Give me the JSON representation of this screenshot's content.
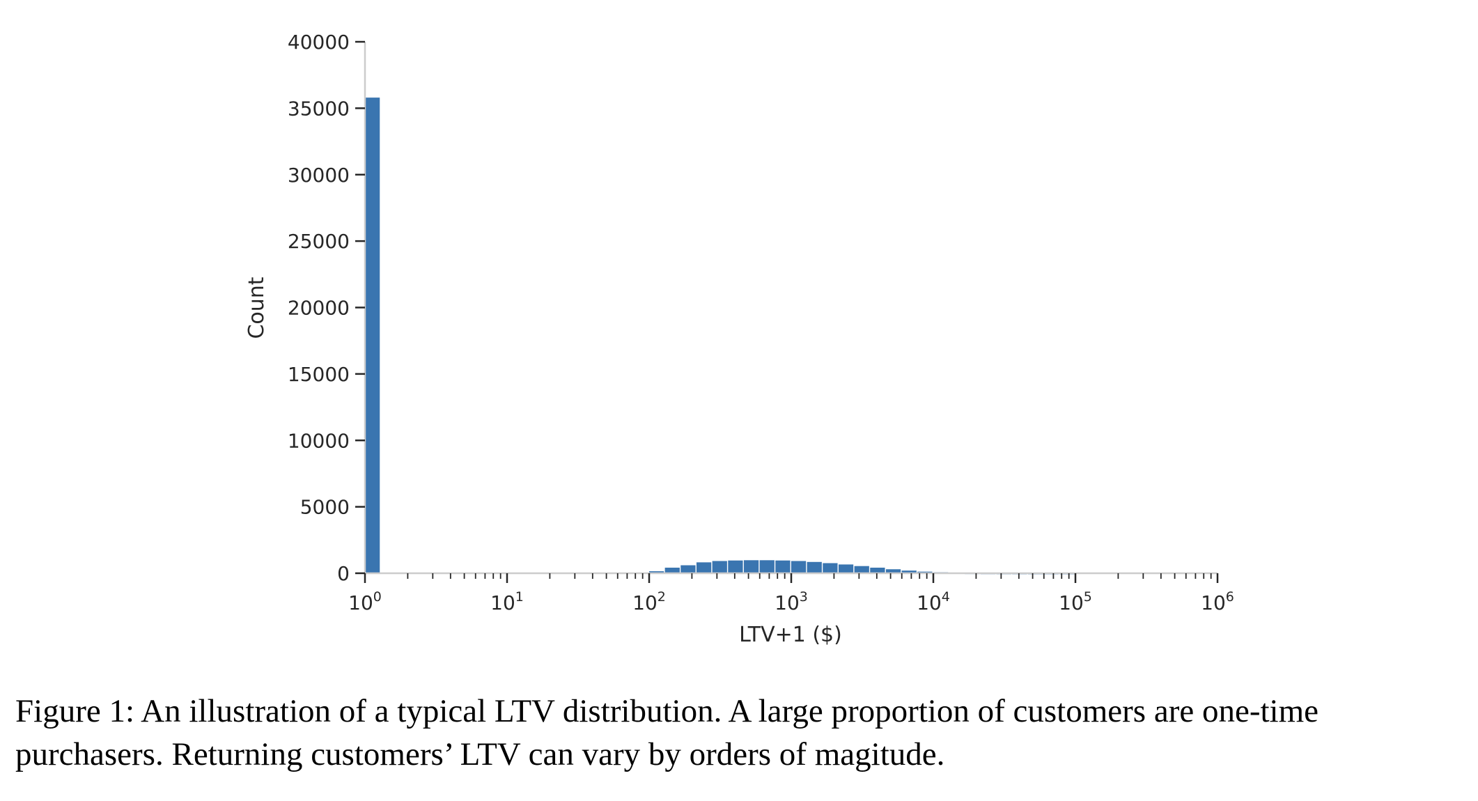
{
  "figure": {
    "caption": "Figure 1: An illustration of a typical LTV distribution. A large proportion of customers are one-time purchasers. Returning customers’ LTV can vary by orders of magitude."
  },
  "chart_data": {
    "type": "bar",
    "xlabel": "LTV+1 ($)",
    "ylabel": "Count",
    "xscale": "log",
    "xlim": [
      1,
      1000000
    ],
    "ylim": [
      0,
      40000
    ],
    "y_ticks": [
      0,
      5000,
      10000,
      15000,
      20000,
      25000,
      30000,
      35000,
      40000
    ],
    "y_tick_labels": [
      "0",
      "5000",
      "10000",
      "15000",
      "20000",
      "25000",
      "30000",
      "35000",
      "40000"
    ],
    "x_ticks": [
      {
        "value": 1,
        "base": "10",
        "exp": "0"
      },
      {
        "value": 10,
        "base": "10",
        "exp": "1"
      },
      {
        "value": 100,
        "base": "10",
        "exp": "2"
      },
      {
        "value": 1000,
        "base": "10",
        "exp": "3"
      },
      {
        "value": 10000,
        "base": "10",
        "exp": "4"
      },
      {
        "value": 100000,
        "base": "10",
        "exp": "5"
      },
      {
        "value": 1000000,
        "base": "10",
        "exp": "6"
      }
    ],
    "grid": false,
    "bar_color": "#3a75b0",
    "bins": {
      "log10_start": 0,
      "log10_width": 0.1111,
      "values": [
        35800,
        0,
        0,
        0,
        0,
        0,
        0,
        0,
        0,
        0,
        0,
        0,
        0,
        0,
        0,
        0,
        0,
        0,
        150,
        420,
        600,
        820,
        920,
        960,
        980,
        980,
        960,
        920,
        850,
        760,
        660,
        540,
        420,
        300,
        200,
        120,
        70,
        35,
        18,
        10,
        6,
        4,
        2,
        1,
        1,
        0,
        0,
        0,
        0,
        0,
        0,
        0,
        0,
        0
      ]
    }
  }
}
